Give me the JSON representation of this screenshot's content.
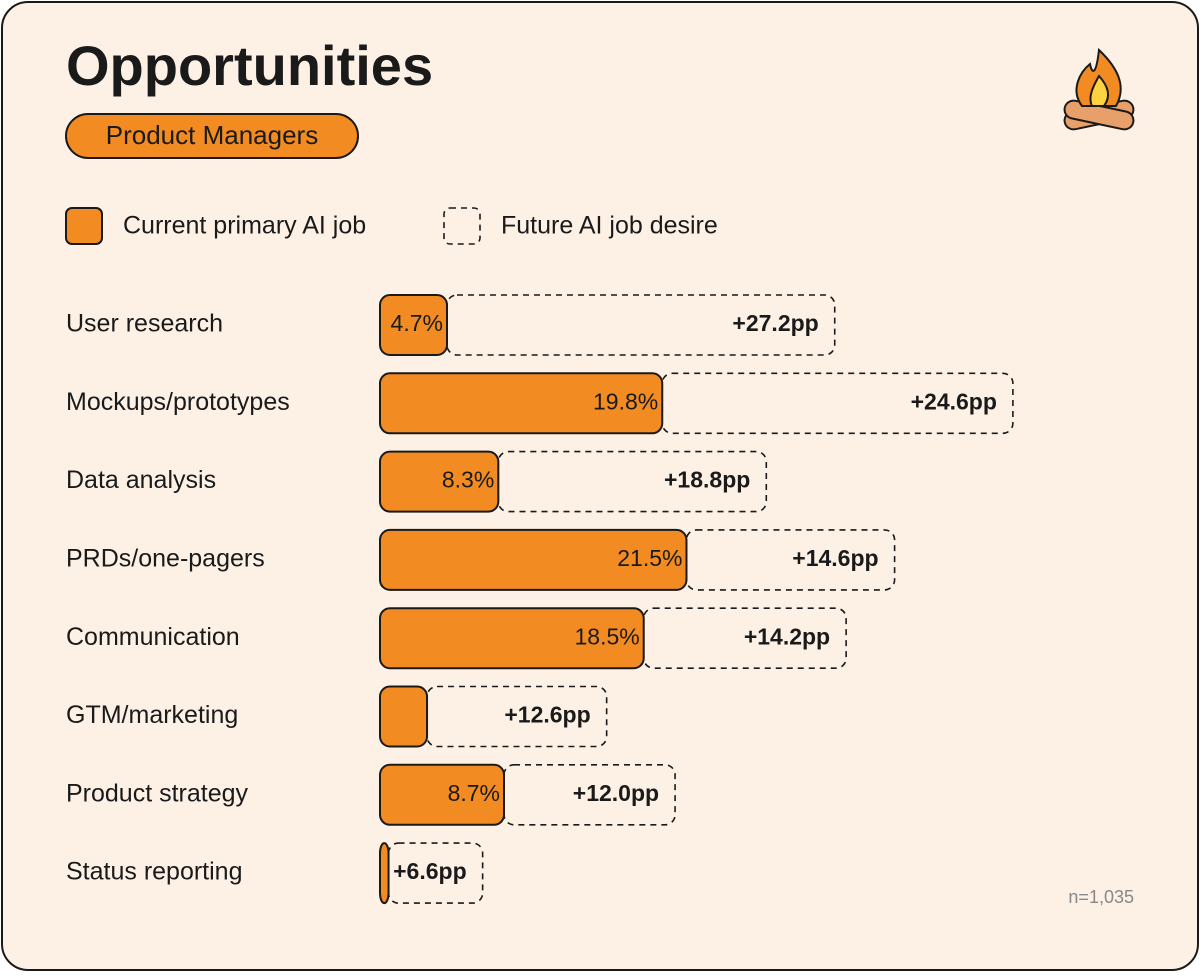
{
  "chart_data": {
    "type": "bar",
    "orientation": "horizontal",
    "stacked": true,
    "title": "Opportunities",
    "subtitle": "Product Managers",
    "note": "n=1,035",
    "categories": [
      "User research",
      "Mockups/prototypes",
      "Data analysis",
      "PRDs/one-pagers",
      "Communication",
      "GTM/marketing",
      "Product strategy",
      "Status reporting"
    ],
    "series": [
      {
        "name": "Current primary AI job",
        "color": "#f28b22",
        "style": "solid",
        "values": [
          4.7,
          19.8,
          8.3,
          21.5,
          18.5,
          3.3,
          8.7,
          0.6
        ],
        "value_labels": [
          "4.7%",
          "19.8%",
          "8.3%",
          "21.5%",
          "18.5%",
          null,
          "8.7%",
          null
        ]
      },
      {
        "name": "Future AI job desire",
        "color": "#1a1a1a",
        "style": "dashed",
        "values": [
          27.2,
          24.6,
          18.8,
          14.6,
          14.2,
          12.6,
          12.0,
          6.6
        ],
        "value_labels": [
          "+27.2pp",
          "+24.6pp",
          "+18.8pp",
          "+14.6pp",
          "+14.2pp",
          "+12.6pp",
          "+12.0pp",
          "+6.6pp"
        ]
      }
    ],
    "xlim": [
      0,
      55
    ]
  }
}
